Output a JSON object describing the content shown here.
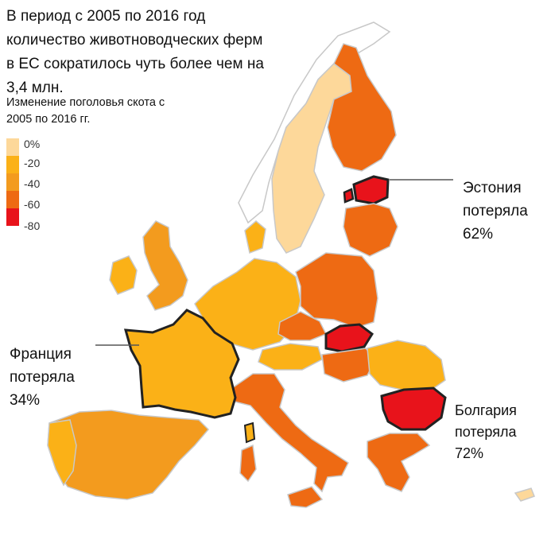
{
  "title": "В период с 2005 по 2016 год количество животноводческих ферм в ЕС сократилось чуть более чем на 3,4 млн.",
  "subtitle": "Изменение поголовья скота с 2005 по 2016 гг.",
  "legend": {
    "items": [
      {
        "label": "0%",
        "color": "#fdd89a"
      },
      {
        "label": "-20",
        "color": "#fbb117"
      },
      {
        "label": "-40",
        "color": "#f39b1e"
      },
      {
        "label": "-60",
        "color": "#ee6a13"
      },
      {
        "label": "-80",
        "color": "#e8131b"
      }
    ]
  },
  "callouts": {
    "estonia": {
      "line1": "Эстония",
      "line2": "потеряла",
      "line3": "62%"
    },
    "france": {
      "line1": "Франция",
      "line2": "потеряла",
      "line3": "34%"
    },
    "bulgaria": {
      "line1": "Болгария",
      "line2": "потеряла",
      "line3": "72%"
    }
  },
  "colors": {
    "background_land": "#ffffff",
    "border": "#c8c8c8",
    "highlight_outline": "#222222"
  }
}
